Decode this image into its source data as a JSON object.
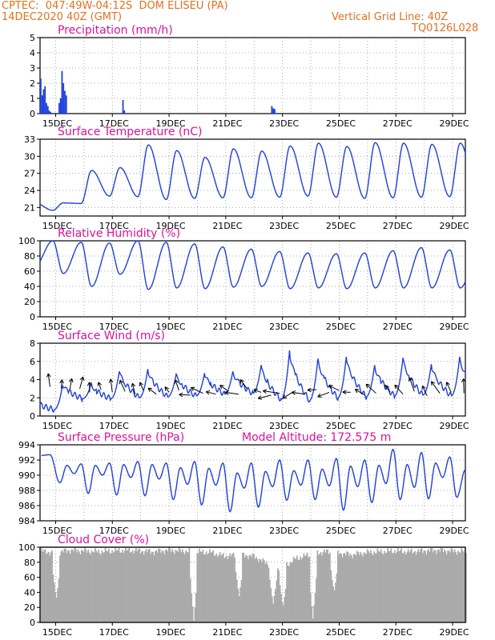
{
  "header": {
    "station": "CPTEC:  047:49W-04:12S  DOM ELISEU (PA)",
    "run": "14DEC2020 40Z (GMT)",
    "grid_note": "Vertical Grid Line: 40Z",
    "code": "TQ0126L028"
  },
  "colors": {
    "header": "#e8701e",
    "title": "#e0109a",
    "line": "#1f3fe0",
    "bar": "#1f3fe0",
    "cloud": "#aaaaaa",
    "axis": "#000000"
  },
  "x_ticks": [
    "15DEC",
    "17DEC",
    "19DEC",
    "21DEC",
    "23DEC",
    "25DEC",
    "27DEC",
    "29DEC"
  ],
  "chart_data": [
    {
      "type": "bar",
      "title": "Precipitation (mm/h)",
      "ylim": [
        0,
        5
      ],
      "yticks": [
        "0",
        "1",
        "2",
        "3",
        "4",
        "5"
      ],
      "x_days": [
        0.0,
        0.05,
        0.1,
        0.15,
        0.2,
        0.25,
        0.3,
        0.35,
        0.65,
        0.7,
        0.75,
        0.8,
        0.85,
        0.9,
        2.9,
        2.95,
        8.15,
        8.2,
        8.25
      ],
      "values": [
        2.3,
        1.2,
        1.6,
        1.8,
        0.7,
        0.5,
        0.2,
        0.1,
        0.7,
        1.0,
        2.8,
        2.0,
        1.5,
        1.2,
        0.9,
        0.2,
        0.5,
        0.35,
        0.3
      ]
    },
    {
      "type": "line",
      "title": "Surface Temperature (nC)",
      "ylim": [
        19.5,
        33
      ],
      "yticks": [
        "21",
        "24",
        "27",
        "30",
        "33"
      ],
      "base": [
        21.8,
        27.5,
        28.0,
        32.0,
        31.0,
        29.8,
        31.3,
        30.9,
        31.8,
        32.3,
        31.7,
        32.4,
        32.3,
        32.1,
        32.3,
        30.6
      ],
      "trough": [
        20.5,
        21.7,
        23.0,
        22.9,
        22.4,
        22.6,
        22.7,
        22.7,
        22.8,
        23.0,
        22.8,
        22.6,
        22.7,
        22.8,
        22.9,
        22.8
      ]
    },
    {
      "type": "line",
      "title": "Relative Humidity (%)",
      "ylim": [
        0,
        100
      ],
      "yticks": [
        "0",
        "20",
        "40",
        "60",
        "80",
        "100"
      ],
      "peak": [
        100,
        98,
        97,
        100,
        98,
        96,
        92,
        89,
        86,
        84,
        83,
        84,
        87,
        91,
        88,
        83
      ],
      "min": [
        57,
        40,
        56,
        36,
        38,
        37,
        39,
        40,
        37,
        38,
        37,
        38,
        38,
        38,
        38,
        55
      ]
    },
    {
      "type": "line",
      "title": "Surface Wind (m/s)",
      "ylim": [
        0,
        8
      ],
      "yticks": [
        "0",
        "2",
        "4",
        "6",
        "8"
      ],
      "daily_max": [
        3.5,
        3.5,
        5.0,
        5.2,
        4.6,
        4.7,
        4.9,
        5.6,
        7.2,
        6.3,
        6.5,
        5.6,
        6.4,
        5.7,
        6.5,
        4.0
      ],
      "daily_min": [
        0.7,
        1.9,
        1.9,
        2.0,
        2.1,
        2.2,
        2.4,
        2.5,
        1.8,
        1.7,
        2.0,
        2.1,
        2.2,
        2.3,
        2.2,
        2.5
      ],
      "barbs": [
        [
          0.35,
          3.2,
          1.7,
          1.2
        ],
        [
          0.75,
          3.0,
          1.5,
          0.8
        ],
        [
          1.05,
          2.9,
          1.4,
          1.0
        ],
        [
          1.4,
          3.0,
          1.3,
          1.1
        ],
        [
          1.75,
          2.6,
          1.6,
          0.9
        ],
        [
          2.15,
          2.9,
          1.9,
          0.7
        ],
        [
          2.55,
          2.6,
          1.7,
          1.2
        ],
        [
          3.0,
          2.7,
          2.0,
          1.1
        ],
        [
          3.35,
          2.4,
          1.8,
          1.0
        ],
        [
          3.65,
          2.8,
          2.0,
          0.8
        ],
        [
          4.1,
          2.4,
          2.5,
          0.9
        ],
        [
          4.55,
          2.6,
          2.2,
          0.6
        ],
        [
          4.9,
          2.8,
          1.9,
          1.0
        ],
        [
          5.3,
          2.3,
          3.1,
          1.0
        ],
        [
          5.75,
          2.5,
          2.7,
          1.2
        ],
        [
          6.2,
          2.4,
          2.9,
          0.9
        ],
        [
          6.6,
          2.8,
          2.5,
          0.8
        ],
        [
          7.0,
          2.4,
          3.0,
          1.2
        ],
        [
          7.3,
          3.0,
          2.2,
          1.0
        ],
        [
          7.8,
          2.6,
          2.8,
          0.7
        ],
        [
          8.15,
          2.3,
          3.4,
          1.2
        ],
        [
          8.45,
          2.5,
          3.0,
          1.5
        ],
        [
          8.9,
          2.6,
          3.7,
          1.0
        ],
        [
          9.35,
          2.4,
          3.0,
          1.2
        ],
        [
          9.75,
          2.9,
          3.2,
          0.8
        ],
        [
          10.2,
          2.6,
          3.5,
          1.1
        ],
        [
          10.55,
          2.8,
          2.7,
          1.0
        ],
        [
          10.95,
          2.6,
          3.1,
          0.7
        ],
        [
          11.45,
          2.3,
          2.6,
          1.0
        ],
        [
          11.85,
          2.5,
          2.4,
          1.2
        ],
        [
          12.35,
          2.6,
          2.2,
          0.8
        ],
        [
          12.8,
          2.4,
          2.3,
          1.1
        ],
        [
          13.2,
          2.7,
          1.9,
          1.3
        ],
        [
          13.65,
          2.2,
          2.0,
          1.0
        ],
        [
          14.1,
          2.5,
          2.2,
          1.3
        ],
        [
          14.5,
          2.6,
          2.0,
          1.0
        ],
        [
          14.95,
          2.5,
          1.6,
          1.3
        ]
      ]
    },
    {
      "type": "line",
      "title": "Surface Pressure (hPa)",
      "subtitle": "Model Altitude: 172.575 m",
      "ylim": [
        984,
        994
      ],
      "yticks": [
        "984",
        "986",
        "988",
        "990",
        "992",
        "994"
      ],
      "highs": [
        [
          0.05,
          992.6
        ],
        [
          0.35,
          992.7
        ],
        [
          0.95,
          991.3
        ],
        [
          1.45,
          991.5
        ],
        [
          1.95,
          991.3
        ],
        [
          2.45,
          991.6
        ],
        [
          2.95,
          991.4
        ],
        [
          3.45,
          991.8
        ],
        [
          3.95,
          991.4
        ],
        [
          4.45,
          991.6
        ],
        [
          4.95,
          991.0
        ],
        [
          5.45,
          991.8
        ],
        [
          5.95,
          990.9
        ],
        [
          6.45,
          991.6
        ],
        [
          6.95,
          990.3
        ],
        [
          7.45,
          991.6
        ],
        [
          7.95,
          990.5
        ],
        [
          8.45,
          992.0
        ],
        [
          8.95,
          990.6
        ],
        [
          9.45,
          992.0
        ],
        [
          9.95,
          990.8
        ],
        [
          10.45,
          992.2
        ],
        [
          10.95,
          991.2
        ],
        [
          11.45,
          992.0
        ],
        [
          11.95,
          991.3
        ],
        [
          12.45,
          993.4
        ],
        [
          12.95,
          991.4
        ],
        [
          13.45,
          993.0
        ],
        [
          13.95,
          991.6
        ],
        [
          14.45,
          992.4
        ],
        [
          15.0,
          990.7
        ]
      ],
      "lows": [
        [
          0.7,
          989.0
        ],
        [
          1.2,
          990.2
        ],
        [
          1.7,
          987.6
        ],
        [
          2.2,
          990.0
        ],
        [
          2.7,
          987.4
        ],
        [
          3.2,
          989.7
        ],
        [
          3.7,
          987.3
        ],
        [
          4.2,
          989.5
        ],
        [
          4.7,
          986.8
        ],
        [
          5.2,
          988.8
        ],
        [
          5.7,
          986.1
        ],
        [
          6.2,
          988.7
        ],
        [
          6.7,
          985.2
        ],
        [
          7.2,
          988.3
        ],
        [
          7.7,
          985.8
        ],
        [
          8.2,
          988.5
        ],
        [
          8.7,
          986.7
        ],
        [
          9.2,
          988.7
        ],
        [
          9.7,
          986.8
        ],
        [
          10.2,
          988.6
        ],
        [
          10.7,
          985.4
        ],
        [
          11.2,
          988.5
        ],
        [
          11.7,
          986.4
        ],
        [
          12.2,
          988.9
        ],
        [
          12.7,
          986.8
        ],
        [
          13.2,
          988.4
        ],
        [
          13.7,
          986.9
        ],
        [
          14.2,
          989.7
        ],
        [
          14.7,
          987.1
        ]
      ]
    },
    {
      "type": "area",
      "title": "Cloud Cover (%)",
      "ylim": [
        0,
        100
      ],
      "yticks": [
        "0",
        "20",
        "40",
        "60",
        "80",
        "100"
      ],
      "x_days": [
        0,
        0.5,
        1,
        1.5,
        2,
        2.5,
        3,
        3.5,
        4,
        4.5,
        5,
        5.5,
        6,
        6.5,
        7,
        7.5,
        8,
        8.5,
        9,
        9.5,
        10,
        10.5,
        11,
        11.5,
        12,
        12.5,
        13,
        13.5,
        14,
        14.5,
        15
      ],
      "values": [
        95,
        92,
        96,
        95,
        94,
        95,
        96,
        95,
        94,
        96,
        95,
        94,
        93,
        88,
        90,
        88,
        78,
        72,
        85,
        90,
        94,
        92,
        90,
        93,
        94,
        95,
        94,
        95,
        96,
        95,
        94
      ],
      "dips": [
        [
          0.55,
          30
        ],
        [
          5.4,
          2
        ],
        [
          7.0,
          35
        ],
        [
          8.2,
          25
        ],
        [
          8.55,
          20
        ],
        [
          9.6,
          5
        ],
        [
          10.35,
          40
        ]
      ]
    }
  ]
}
